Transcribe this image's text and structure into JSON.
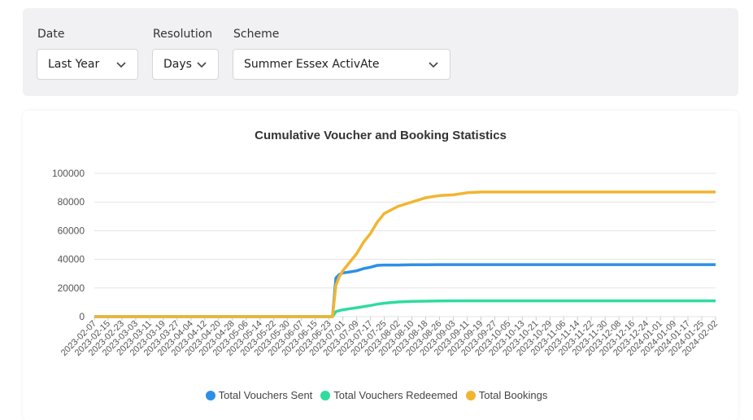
{
  "filters": {
    "date": {
      "label": "Date",
      "value": "Last Year"
    },
    "resolution": {
      "label": "Resolution",
      "value": "Days"
    },
    "scheme": {
      "label": "Scheme",
      "value": "Summer Essex ActivAte"
    }
  },
  "chart_data": {
    "type": "line",
    "title": "Cumulative Voucher and Booking Statistics",
    "xlabel": "",
    "ylabel": "",
    "ylim": [
      0,
      100000
    ],
    "yticks": [
      0,
      20000,
      40000,
      60000,
      80000,
      100000
    ],
    "grid": true,
    "legend_position": "bottom",
    "x_tick_labels": [
      "2023-02-07",
      "2023-02-15",
      "2023-02-23",
      "2023-03-03",
      "2023-03-11",
      "2023-03-19",
      "2023-03-27",
      "2023-04-04",
      "2023-04-12",
      "2023-04-20",
      "2023-04-28",
      "2023-05-06",
      "2023-05-14",
      "2023-05-22",
      "2023-05-30",
      "2023-06-07",
      "2023-06-15",
      "2023-06-23",
      "2023-07-01",
      "2023-07-09",
      "2023-07-17",
      "2023-07-25",
      "2023-08-02",
      "2023-08-10",
      "2023-08-18",
      "2023-08-26",
      "2023-09-03",
      "2023-09-11",
      "2023-09-19",
      "2023-09-27",
      "2023-10-05",
      "2023-10-13",
      "2023-10-21",
      "2023-10-29",
      "2023-11-06",
      "2023-11-14",
      "2023-11-22",
      "2023-11-30",
      "2023-12-08",
      "2023-12-16",
      "2023-12-24",
      "2024-01-01",
      "2024-01-09",
      "2024-01-17",
      "2024-01-25",
      "2024-02-02"
    ],
    "x": [
      "2023-02-07",
      "2023-06-25",
      "2023-06-27",
      "2023-06-29",
      "2023-07-01",
      "2023-07-05",
      "2023-07-09",
      "2023-07-13",
      "2023-07-17",
      "2023-07-21",
      "2023-07-25",
      "2023-08-02",
      "2023-08-10",
      "2023-08-18",
      "2023-08-26",
      "2023-09-03",
      "2023-09-11",
      "2023-09-19",
      "2023-10-05",
      "2023-11-06",
      "2023-12-08",
      "2024-01-09",
      "2024-02-02"
    ],
    "series": [
      {
        "name": "Total Vouchers Sent",
        "color": "#2e8fe6",
        "values": [
          0,
          0,
          27000,
          29500,
          30500,
          31200,
          32000,
          33500,
          34500,
          35800,
          36000,
          36000,
          36200,
          36200,
          36300,
          36300,
          36300,
          36300,
          36300,
          36300,
          36300,
          36300,
          36300
        ]
      },
      {
        "name": "Total Vouchers Redeemed",
        "color": "#2edc9e",
        "values": [
          0,
          0,
          3500,
          4200,
          4800,
          5500,
          6200,
          7000,
          7800,
          8700,
          9400,
          10200,
          10600,
          10800,
          10900,
          11000,
          11000,
          11000,
          11000,
          11000,
          11000,
          11000,
          11000
        ]
      },
      {
        "name": "Total Bookings",
        "color": "#f2b531",
        "values": [
          0,
          0,
          22000,
          28000,
          32000,
          38000,
          44000,
          52000,
          58000,
          66000,
          72000,
          77000,
          80000,
          83000,
          84500,
          85000,
          86500,
          87000,
          87000,
          87000,
          87000,
          87000,
          87000
        ]
      }
    ]
  }
}
